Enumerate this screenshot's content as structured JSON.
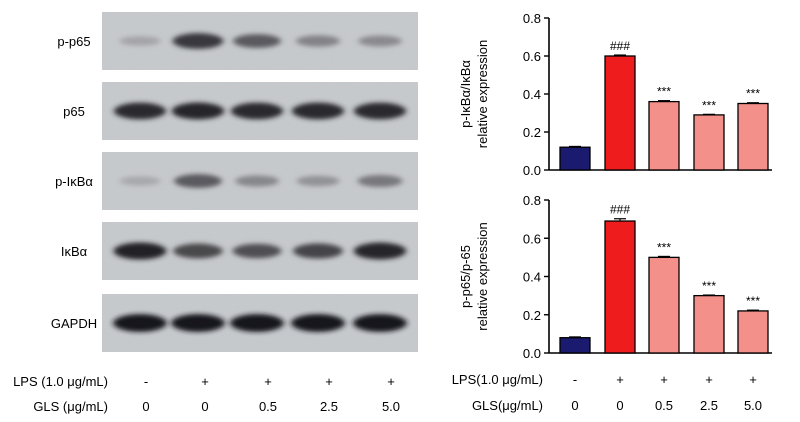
{
  "blot": {
    "bands": [
      {
        "label": "p-p65",
        "intensity": [
          0.22,
          0.8,
          0.62,
          0.4,
          0.36
        ]
      },
      {
        "label": "p65",
        "intensity": [
          0.88,
          0.9,
          0.88,
          0.88,
          0.88
        ]
      },
      {
        "label": "p-IκBα",
        "intensity": [
          0.2,
          0.62,
          0.38,
          0.32,
          0.46
        ]
      },
      {
        "label": "IκBα",
        "intensity": [
          0.92,
          0.72,
          0.68,
          0.74,
          0.9
        ]
      },
      {
        "label": "GAPDH",
        "intensity": [
          0.98,
          0.98,
          0.98,
          0.98,
          0.98
        ]
      }
    ]
  },
  "left_conditions": {
    "lps_label": "LPS (1.0 μg/mL)",
    "gls_label": "GLS (μg/mL)",
    "lps": [
      "-",
      "+",
      "+",
      "+",
      "+"
    ],
    "gls": [
      "0",
      "0",
      "0.5",
      "2.5",
      "5.0"
    ]
  },
  "right_conditions": {
    "lps_label": "LPS(1.0 μg/mL)",
    "gls_label": "GLS(μg/mL)",
    "lps": [
      "-",
      "+",
      "+",
      "+",
      "+"
    ],
    "gls": [
      "0",
      "0",
      "0.5",
      "2.5",
      "5.0"
    ]
  },
  "chart_data": [
    {
      "type": "bar",
      "categories": [
        "0",
        "0",
        "0.5",
        "2.5",
        "5.0"
      ],
      "values": [
        0.12,
        0.6,
        0.36,
        0.29,
        0.35
      ],
      "errors": [
        0.004,
        0.005,
        0.005,
        0.003,
        0.004
      ],
      "annotations": [
        "",
        "###",
        "***",
        "***",
        "***"
      ],
      "ylabel_line1": "p-IκBα/IκBα",
      "ylabel_line2": "relative expression",
      "ylim": [
        0,
        0.8
      ],
      "yticks": [
        "0.0",
        "0.2",
        "0.4",
        "0.6",
        "0.8"
      ],
      "bar_colors": [
        "#1a1a6e",
        "#ee1c1c",
        "#f4908a",
        "#f4908a",
        "#f4908a"
      ]
    },
    {
      "type": "bar",
      "categories": [
        "0",
        "0",
        "0.5",
        "2.5",
        "5.0"
      ],
      "values": [
        0.08,
        0.69,
        0.5,
        0.3,
        0.22
      ],
      "errors": [
        0.004,
        0.012,
        0.005,
        0.003,
        0.004
      ],
      "annotations": [
        "",
        "###",
        "***",
        "***",
        "***"
      ],
      "ylabel_line1": "p-p65/p-65",
      "ylabel_line2": "relative expression",
      "ylim": [
        0,
        0.8
      ],
      "yticks": [
        "0.0",
        "0.2",
        "0.4",
        "0.6",
        "0.8"
      ],
      "bar_colors": [
        "#1a1a6e",
        "#ee1c1c",
        "#f4908a",
        "#f4908a",
        "#f4908a"
      ]
    }
  ]
}
